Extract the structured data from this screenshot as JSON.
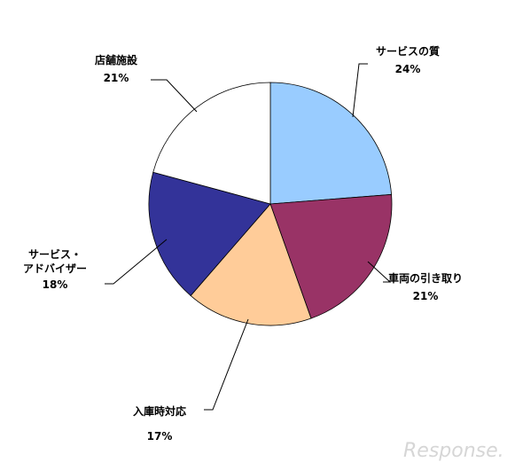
{
  "chart_data": {
    "type": "pie",
    "title": "",
    "slices": [
      {
        "label": "サービスの質",
        "label_lines": [
          "サービスの質"
        ],
        "value": 24,
        "value_text": "24%",
        "color": "#99ccff"
      },
      {
        "label": "車両の引き取り",
        "label_lines": [
          "車両の引き取り"
        ],
        "value": 21,
        "value_text": "21%",
        "color": "#993366"
      },
      {
        "label": "入庫時対応",
        "label_lines": [
          "入庫時対応"
        ],
        "value": 17,
        "value_text": "17%",
        "color": "#ffcc99"
      },
      {
        "label": "サービス・アドバイザー",
        "label_lines": [
          "サービス・",
          "アドバイザー"
        ],
        "value": 18,
        "value_text": "18%",
        "color": "#333399"
      },
      {
        "label": "店舗施設",
        "label_lines": [
          "店舗施設"
        ],
        "value": 21,
        "value_text": "21%",
        "color": "#ffffff"
      }
    ],
    "start_angle": "12 o'clock",
    "direction": "clockwise",
    "legend": "none"
  },
  "watermark": {
    "text": "Response."
  }
}
